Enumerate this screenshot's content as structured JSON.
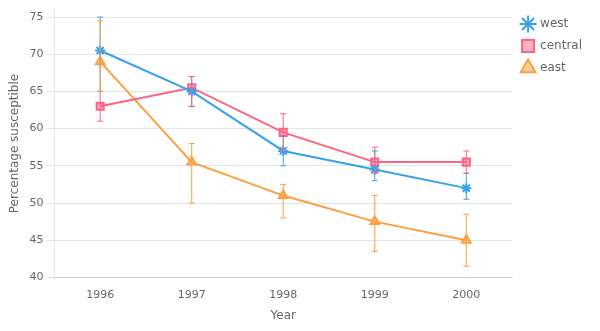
{
  "chart_data": {
    "type": "line",
    "xlabel": "Year",
    "ylabel": "Percentage susceptible",
    "categories": [
      "1996",
      "1997",
      "1998",
      "1999",
      "2000"
    ],
    "series": [
      {
        "name": "west",
        "marker": "star",
        "values": [
          70.5,
          65.0,
          57.0,
          54.5,
          52.0
        ],
        "yerr_lower": [
          5.5,
          2.0,
          2.0,
          1.5,
          1.5
        ],
        "yerr_upper": [
          4.5,
          2.0,
          2.0,
          2.5,
          2.0
        ]
      },
      {
        "name": "central",
        "marker": "square",
        "values": [
          63.0,
          65.5,
          59.5,
          55.5,
          55.5
        ],
        "yerr_lower": [
          2.0,
          2.5,
          2.5,
          1.5,
          1.5
        ],
        "yerr_upper": [
          2.0,
          1.5,
          2.5,
          2.0,
          1.5
        ]
      },
      {
        "name": "east",
        "marker": "triangle",
        "values": [
          69.0,
          55.5,
          51.0,
          47.5,
          45.0
        ],
        "yerr_lower": [
          4.0,
          5.5,
          3.0,
          4.0,
          3.5
        ],
        "yerr_upper": [
          5.5,
          2.5,
          1.5,
          3.5,
          3.5
        ]
      }
    ],
    "ylim": [
      40,
      76
    ],
    "yticks": [
      40,
      45,
      50,
      55,
      60,
      65,
      70,
      75
    ],
    "grid": "y",
    "legend": "upper right outside"
  }
}
